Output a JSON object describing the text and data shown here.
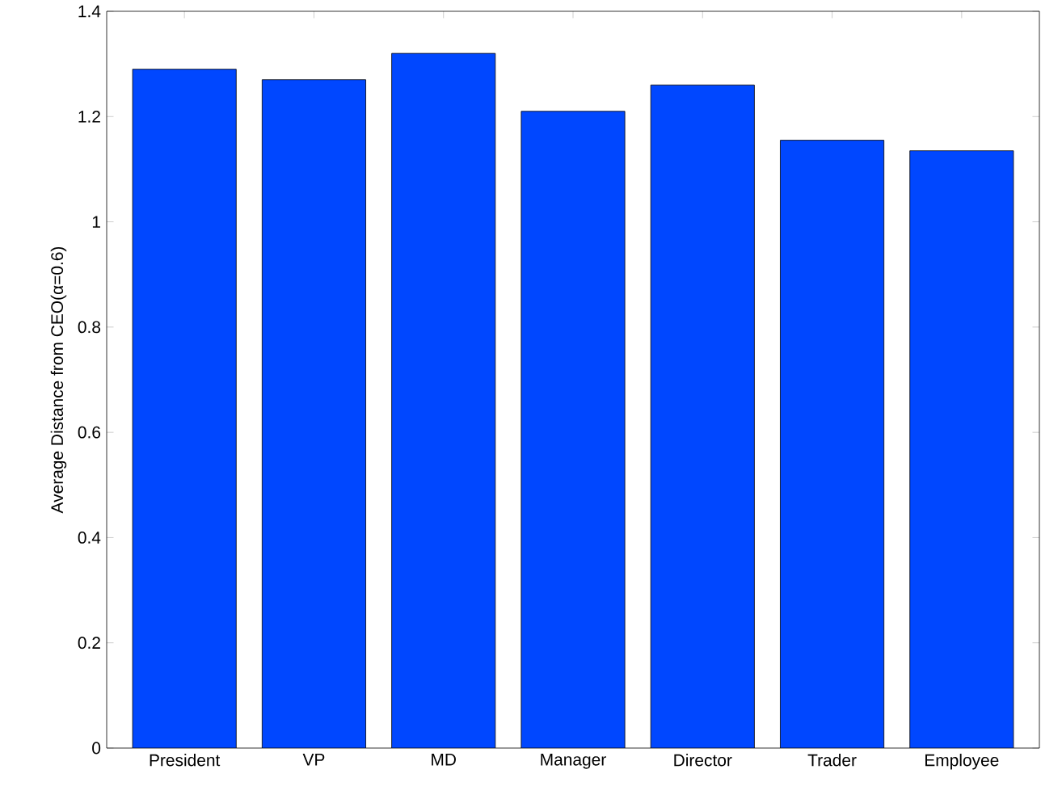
{
  "chart_data": {
    "type": "bar",
    "ylabel": "Average Distance from CEO(α=0.6)",
    "categories": [
      "President",
      "VP",
      "MD",
      "Manager",
      "Director",
      "Trader",
      "Employee"
    ],
    "values": [
      1.29,
      1.27,
      1.32,
      1.21,
      1.26,
      1.155,
      1.135
    ],
    "color": "#0047ff",
    "ylim": [
      0,
      1.4
    ],
    "yticks": [
      0,
      0.2,
      0.4,
      0.6,
      0.8,
      1,
      1.2,
      1.4
    ],
    "grid": false
  }
}
